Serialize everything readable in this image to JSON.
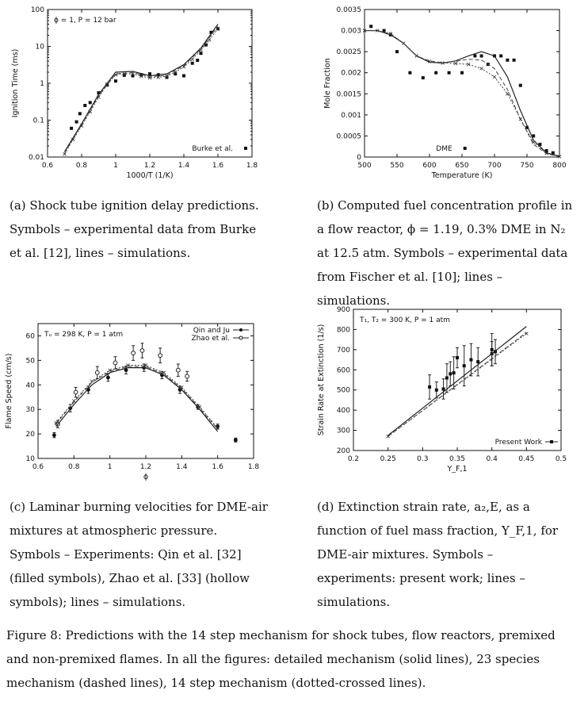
{
  "chart_data": [
    {
      "type": "line",
      "xlabel": "1000/T (1/K)",
      "ylabel": "Ignition Time (ms)",
      "annotation": "ϕ = 1, P = 12 bar",
      "legend": "Burke et al.",
      "legend_position": "bottom-right",
      "xlim": [
        0.6,
        1.8
      ],
      "ylim": [
        0.01,
        100
      ],
      "yscale": "log",
      "xticks": [
        "0.6",
        "0.8",
        "1",
        "1.2",
        "1.4",
        "1.6",
        "1.8"
      ],
      "yticks": [
        "0.01",
        "0.1",
        "1",
        "10",
        "100"
      ],
      "series": [
        {
          "name": "Burke et al.",
          "style": "points",
          "x": [
            0.74,
            0.77,
            0.79,
            0.82,
            0.85,
            0.9,
            0.95,
            1.0,
            1.05,
            1.1,
            1.15,
            1.2,
            1.25,
            1.3,
            1.35,
            1.4,
            1.45,
            1.48,
            1.5,
            1.53,
            1.56,
            1.6
          ],
          "y": [
            0.06,
            0.09,
            0.15,
            0.25,
            0.3,
            0.55,
            0.9,
            1.15,
            1.65,
            1.6,
            1.7,
            1.8,
            1.7,
            1.45,
            1.8,
            1.6,
            3.5,
            4.2,
            6.5,
            11,
            24,
            30
          ]
        },
        {
          "style": "solid",
          "x": [
            0.7,
            0.8,
            0.9,
            1.0,
            1.1,
            1.2,
            1.3,
            1.4,
            1.5,
            1.6
          ],
          "y": [
            0.014,
            0.08,
            0.5,
            2.0,
            2.1,
            1.6,
            1.8,
            3.2,
            9,
            40
          ]
        },
        {
          "style": "dashed",
          "x": [
            0.7,
            0.8,
            0.9,
            1.0,
            1.1,
            1.2,
            1.3,
            1.4,
            1.5,
            1.6
          ],
          "y": [
            0.013,
            0.075,
            0.45,
            1.8,
            1.95,
            1.5,
            1.65,
            3.0,
            8.5,
            35
          ]
        },
        {
          "style": "dotted-crossed",
          "x": [
            0.7,
            0.75,
            0.8,
            0.85,
            0.9,
            0.95,
            1.0,
            1.05,
            1.1,
            1.15,
            1.2,
            1.25,
            1.3,
            1.35,
            1.4,
            1.45,
            1.5,
            1.55,
            1.6
          ],
          "y": [
            0.012,
            0.03,
            0.07,
            0.17,
            0.42,
            0.95,
            1.7,
            1.8,
            1.8,
            1.55,
            1.4,
            1.45,
            1.55,
            2.0,
            2.8,
            4.5,
            8,
            15,
            30
          ]
        }
      ]
    },
    {
      "type": "line",
      "xlabel": "Temperature (K)",
      "ylabel": "Mole Fraction",
      "legend": "DME",
      "legend_position": "bottom-center",
      "xlim": [
        500,
        800
      ],
      "ylim": [
        0,
        0.0035
      ],
      "xticks": [
        "500",
        "550",
        "600",
        "650",
        "700",
        "750",
        "800"
      ],
      "yticks": [
        "0",
        "0.0005",
        "0.001",
        "0.0015",
        "0.002",
        "0.0025",
        "0.003",
        "0.0035"
      ],
      "series": [
        {
          "name": "DME",
          "style": "points",
          "x": [
            510,
            530,
            540,
            550,
            570,
            590,
            610,
            630,
            650,
            670,
            680,
            690,
            700,
            710,
            720,
            730,
            740,
            750,
            760,
            770,
            780,
            790
          ],
          "y": [
            0.0031,
            0.003,
            0.0029,
            0.0025,
            0.002,
            0.00188,
            0.002,
            0.002,
            0.002,
            0.0024,
            0.0024,
            0.0022,
            0.0024,
            0.0024,
            0.0023,
            0.0023,
            0.0017,
            0.0007,
            0.0005,
            0.0003,
            0.00015,
            0.0001
          ]
        },
        {
          "style": "solid",
          "x": [
            500,
            520,
            540,
            560,
            580,
            600,
            620,
            640,
            660,
            680,
            700,
            720,
            740,
            760,
            780,
            800
          ],
          "y": [
            0.003,
            0.003,
            0.0029,
            0.0027,
            0.0024,
            0.00225,
            0.00223,
            0.00228,
            0.0024,
            0.0025,
            0.0024,
            0.0019,
            0.0011,
            0.0004,
            0.0001,
            2e-05
          ]
        },
        {
          "style": "dashed",
          "x": [
            500,
            520,
            540,
            560,
            580,
            600,
            620,
            640,
            660,
            680,
            700,
            720,
            740,
            760,
            780,
            800
          ],
          "y": [
            0.003,
            0.003,
            0.00292,
            0.0027,
            0.0024,
            0.00228,
            0.00224,
            0.00227,
            0.00232,
            0.0023,
            0.0021,
            0.0016,
            0.0009,
            0.0003,
            8e-05,
            1e-05
          ]
        },
        {
          "style": "dotted-crossed",
          "x": [
            500,
            520,
            540,
            560,
            580,
            600,
            620,
            640,
            660,
            680,
            700,
            720,
            740,
            760,
            780,
            800
          ],
          "y": [
            0.003,
            0.003,
            0.00293,
            0.0027,
            0.0024,
            0.00227,
            0.00223,
            0.00222,
            0.0022,
            0.0021,
            0.0019,
            0.0015,
            0.0009,
            0.00035,
            9e-05,
            1e-05
          ]
        }
      ]
    },
    {
      "type": "line",
      "xlabel": "ϕ",
      "ylabel": "Flame Speed (cm/s)",
      "annotation": "Tᵤ = 298 K, P = 1 atm",
      "legend": [
        "Qin and Ju",
        "Zhao et al."
      ],
      "legend_position": "top-right",
      "xlim": [
        0.6,
        1.8
      ],
      "ylim": [
        10,
        65
      ],
      "xticks": [
        "0.6",
        "0.8",
        "1",
        "1.2",
        "1.4",
        "1.6",
        "1.8"
      ],
      "yticks": [
        "10",
        "20",
        "30",
        "40",
        "50",
        "60"
      ],
      "series": [
        {
          "name": "Qin and Ju",
          "style": "filled-points",
          "x": [
            0.69,
            0.78,
            0.88,
            0.99,
            1.09,
            1.19,
            1.29,
            1.39,
            1.49,
            1.6,
            1.7
          ],
          "y": [
            19.5,
            30.5,
            38,
            43,
            46,
            47,
            44,
            38,
            31,
            23,
            17.5
          ],
          "err": [
            1,
            1.5,
            1.5,
            1.5,
            1.5,
            1.5,
            1.5,
            1.5,
            1,
            1,
            0.8
          ]
        },
        {
          "name": "Zhao et al.",
          "style": "hollow-points",
          "x": [
            0.71,
            0.81,
            0.93,
            1.03,
            1.13,
            1.18,
            1.28,
            1.38,
            1.43
          ],
          "y": [
            24,
            37,
            45,
            49,
            53,
            54,
            52,
            46,
            43.5
          ],
          "err": [
            1.5,
            2,
            2.5,
            2.5,
            3,
            3,
            3,
            2.5,
            2
          ]
        },
        {
          "style": "solid",
          "x": [
            0.7,
            0.8,
            0.9,
            1.0,
            1.1,
            1.2,
            1.3,
            1.4,
            1.5,
            1.6
          ],
          "y": [
            23,
            32,
            40,
            45,
            47,
            47,
            44,
            38,
            30,
            21
          ]
        },
        {
          "style": "dashed",
          "x": [
            0.7,
            0.8,
            0.9,
            1.0,
            1.1,
            1.2,
            1.3,
            1.4,
            1.5,
            1.6
          ],
          "y": [
            24,
            33,
            41,
            45.5,
            47.5,
            47.5,
            44.5,
            38.5,
            30.5,
            22
          ]
        },
        {
          "style": "dotted-crossed",
          "x": [
            0.7,
            0.8,
            0.9,
            1.0,
            1.1,
            1.2,
            1.3,
            1.4,
            1.5,
            1.6
          ],
          "y": [
            24.5,
            33.5,
            41.5,
            46,
            48,
            48,
            45,
            39,
            31,
            22.5
          ]
        }
      ]
    },
    {
      "type": "scatter",
      "xlabel": "Y_F,1",
      "ylabel": "Strain Rate at Extinction (1/s)",
      "annotation": "T₁, T₂ = 300 K, P = 1 atm",
      "legend": "Present Work",
      "legend_position": "bottom-right",
      "xlim": [
        0.2,
        0.5
      ],
      "ylim": [
        200,
        900
      ],
      "xticks": [
        "0.2",
        "0.25",
        "0.3",
        "0.35",
        "0.4",
        "0.45",
        "0.5"
      ],
      "yticks": [
        "200",
        "300",
        "400",
        "500",
        "600",
        "700",
        "800",
        "900"
      ],
      "series": [
        {
          "name": "Present Work",
          "style": "points",
          "x": [
            0.31,
            0.32,
            0.33,
            0.335,
            0.34,
            0.345,
            0.35,
            0.36,
            0.37,
            0.38,
            0.4,
            0.4,
            0.405
          ],
          "y": [
            515,
            500,
            505,
            560,
            580,
            585,
            660,
            620,
            650,
            640,
            680,
            700,
            690
          ],
          "err": [
            60,
            40,
            50,
            70,
            60,
            80,
            50,
            100,
            80,
            70,
            60,
            80,
            60
          ]
        },
        {
          "style": "solid",
          "x": [
            0.25,
            0.45
          ],
          "y": [
            275,
            815
          ]
        },
        {
          "style": "dashed",
          "x": [
            0.25,
            0.45
          ],
          "y": [
            270,
            785
          ]
        },
        {
          "style": "dotted-crossed",
          "x": [
            0.25,
            0.45
          ],
          "y": [
            270,
            780
          ]
        }
      ]
    }
  ],
  "captions": {
    "a": "(a) Shock tube ignition delay predictions. Symbols – experimental data from Burke et al. [12], lines – simulations.",
    "b": "(b) Computed fuel concentration profile in a flow reactor, ϕ = 1.19, 0.3% DME in N₂ at 12.5 atm. Symbols – experimental data from Fischer et al. [10]; lines – simulations.",
    "c": "(c) Laminar burning velocities for DME-air mixtures at atmospheric pressure. Symbols – Experiments: Qin et al. [32] (filled symbols), Zhao et al. [33] (hollow symbols); lines – simulations.",
    "d": "(d) Extinction strain rate, a₂,E, as a function of fuel mass fraction, Y_F,1, for DME-air mixtures. Symbols – experiments: present work; lines – simulations.",
    "figure": "Figure 8: Predictions with the 14 step mechanism for shock tubes, flow reactors, premixed and non-premixed flames. In all the figures: detailed mechanism (solid lines), 23 species mechanism (dashed lines), 14 step mechanism (dotted-crossed lines)."
  }
}
